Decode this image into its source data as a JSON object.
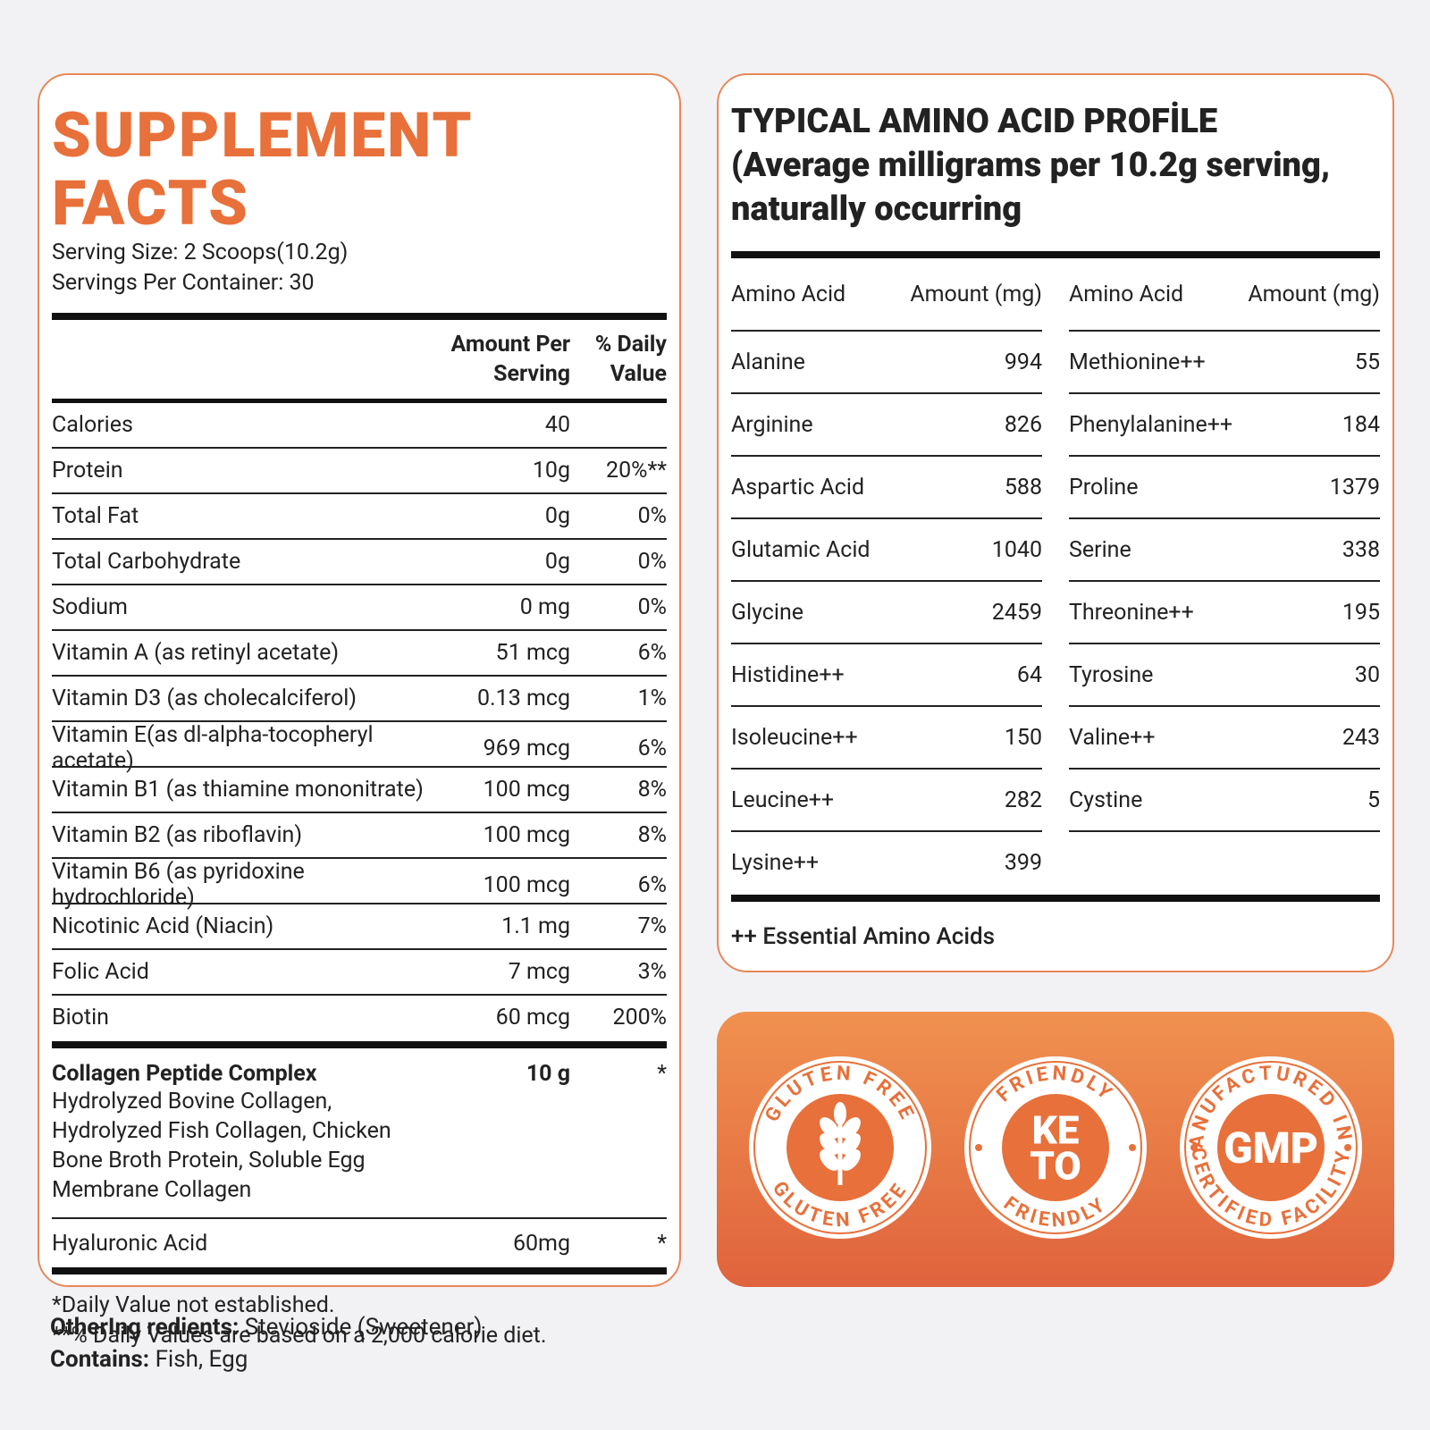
{
  "supplement_facts": {
    "title": "SUPPLEMENT FACTS",
    "serving_size": "Serving Size: 2 Scoops(10.2g)",
    "servings_per_container": "Servings Per Container: 30",
    "headers": [
      "Amount Per Serving",
      "% Daily Value"
    ],
    "rows": [
      {
        "name": "Calories",
        "amount": "40"
      },
      {
        "name": "Protein",
        "amount": "10g",
        "dv": "20%**"
      },
      {
        "name": "Total Fat",
        "amount": "0g",
        "dv": "0%"
      },
      {
        "name": "Total Carbohydrate",
        "amount": "0g",
        "dv": "0%"
      },
      {
        "name": "Sodium",
        "amount": "0 mg",
        "dv": "0%"
      },
      {
        "name": "Vitamin A (as retinyl acetate)",
        "amount": "51 mcg",
        "dv": "6%"
      },
      {
        "name": "Vitamin D3 (as cholecalciferol)",
        "amount": "0.13 mcg",
        "dv": "1%"
      },
      {
        "name": "Vitamin E(as dl-alpha-tocopheryl acetate)",
        "amount": "969 mcg",
        "dv": "6%"
      },
      {
        "name": "Vitamin B1 (as thiamine mononitrate)",
        "amount": "100 mcg",
        "dv": "8%"
      },
      {
        "name": "Vitamin B2 (as riboflavin)",
        "amount": "100 mcg",
        "dv": "8%"
      },
      {
        "name": "Vitamin B6 (as pyridoxine hydrochloride)",
        "amount": "100 mcg",
        "dv": "6%"
      },
      {
        "name": "Nicotinic Acid (Niacin)",
        "amount": "1.1 mg",
        "dv": "7%"
      },
      {
        "name": "Folic Acid",
        "amount": "7 mcg",
        "dv": "3%"
      },
      {
        "name": "Biotin",
        "amount": "60 mcg",
        "dv": "200%"
      }
    ],
    "complex": {
      "name": "Collagen Peptide Complex",
      "amount": "10 g",
      "dv": "*",
      "description": "Hydrolyzed Bovine Collagen, Hydrolyzed Fish Collagen, Chicken Bone Broth Protein, Soluble Egg Membrane Collagen"
    },
    "hyaluronic": {
      "name": "Hyaluronic Acid",
      "amount": "60mg",
      "dv": "*"
    },
    "footnotes": [
      "*Daily Value not established.",
      "**% Daily Values are based on a 2,000 calorie diet."
    ]
  },
  "amino_profile": {
    "title": "TYPICAL AMINO ACID PROFİLE",
    "subtitle": "(Average milligrams per 10.2g serving, naturally occurring",
    "headers": [
      "Amino Acid",
      "Amount (mg)"
    ],
    "columns": [
      [
        [
          "Alanine",
          994
        ],
        [
          "Arginine",
          826
        ],
        [
          "Aspartic Acid",
          588
        ],
        [
          "Glutamic Acid",
          1040
        ],
        [
          "Glycine",
          2459
        ],
        [
          "Histidine++",
          64
        ],
        [
          "Isoleucine++",
          150
        ],
        [
          "Leucine++",
          282
        ],
        [
          "Lysine++",
          399
        ]
      ],
      [
        [
          "Methionine++",
          55
        ],
        [
          "Phenylalanine++",
          184
        ],
        [
          "Proline",
          1379
        ],
        [
          "Serine",
          338
        ],
        [
          "Threonine++",
          195
        ],
        [
          "Tyrosine",
          30
        ],
        [
          "Valine++",
          243
        ],
        [
          "Cystine",
          5
        ]
      ]
    ],
    "footnote": "++ Essential Amino Acids"
  },
  "badges": [
    {
      "top": "GLUTEN FREE",
      "bottom": "GLUTEN FREE"
    },
    {
      "top": "FRIENDLY",
      "center": [
        "KE",
        "TO"
      ],
      "bottom": "FRIENDLY"
    },
    {
      "top": "MANUFACTURED IN A",
      "center": [
        "GMP"
      ],
      "bottom": "CERTIFIED FACILITY"
    }
  ],
  "footer": {
    "other_label": "OtherIng redients:",
    "other_value": "Stevioside (Sweetener)",
    "contains_label": "Contains:",
    "contains_value": "Fish, Egg"
  }
}
